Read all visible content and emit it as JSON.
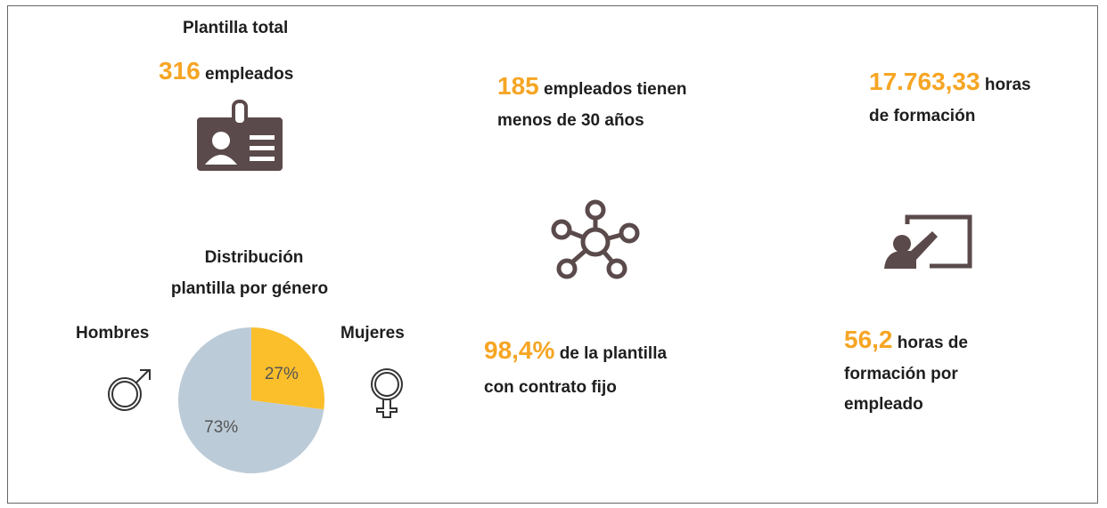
{
  "plantilla": {
    "title": "Plantilla total",
    "value": "316",
    "label": "empleados"
  },
  "jovenes": {
    "value": "185",
    "lines": [
      "empleados tienen",
      "menos de 30 años"
    ]
  },
  "formacion": {
    "value": "17.763,33",
    "lines": [
      "horas",
      "de formación"
    ]
  },
  "contrato": {
    "value": "98,4%",
    "lines": [
      "de la plantilla",
      "con contrato fijo"
    ]
  },
  "formacion_empleado": {
    "value": "56,2",
    "lines": [
      "horas de",
      "formación por",
      "empleado"
    ]
  },
  "chart_data": {
    "type": "pie",
    "title": [
      "Distribución",
      "plantilla por género"
    ],
    "categories": [
      "Hombres",
      "Mujeres"
    ],
    "values": [
      73,
      27
    ],
    "value_labels": [
      "73%",
      "27%"
    ],
    "colors": [
      "#bccbd8",
      "#fbbf2c"
    ]
  }
}
